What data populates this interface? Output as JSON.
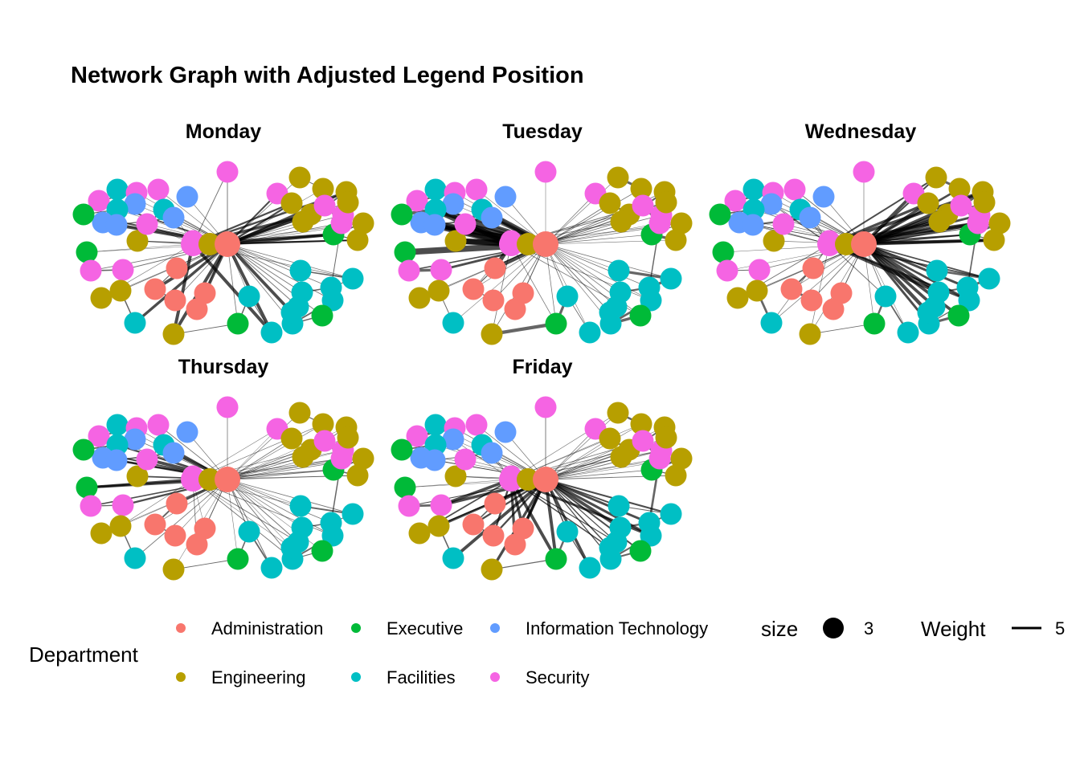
{
  "title": "Network Graph with Adjusted Legend Position",
  "panels": [
    {
      "name": "Monday",
      "weight": 1,
      "thick_dir": "mixed"
    },
    {
      "name": "Tuesday",
      "weight": 3,
      "thick_dir": "left"
    },
    {
      "name": "Wednesday",
      "weight": 2,
      "thick_dir": "right"
    },
    {
      "name": "Thursday",
      "weight": 1,
      "thick_dir": "left"
    },
    {
      "name": "Friday",
      "weight": 2,
      "thick_dir": "down"
    }
  ],
  "legend": {
    "department_title": "Department",
    "departments": [
      {
        "name": "Administration",
        "color": "#F8766D"
      },
      {
        "name": "Engineering",
        "color": "#B79F00"
      },
      {
        "name": "Executive",
        "color": "#00BA38"
      },
      {
        "name": "Facilities",
        "color": "#00BFC4"
      },
      {
        "name": "Information Technology",
        "color": "#619CFF"
      },
      {
        "name": "Security",
        "color": "#F564E3"
      }
    ],
    "size_title": "size",
    "size_value": "3",
    "weight_title": "Weight",
    "weight_value": "5"
  },
  "hub_department": "Administration",
  "edge_color": "#000000"
}
